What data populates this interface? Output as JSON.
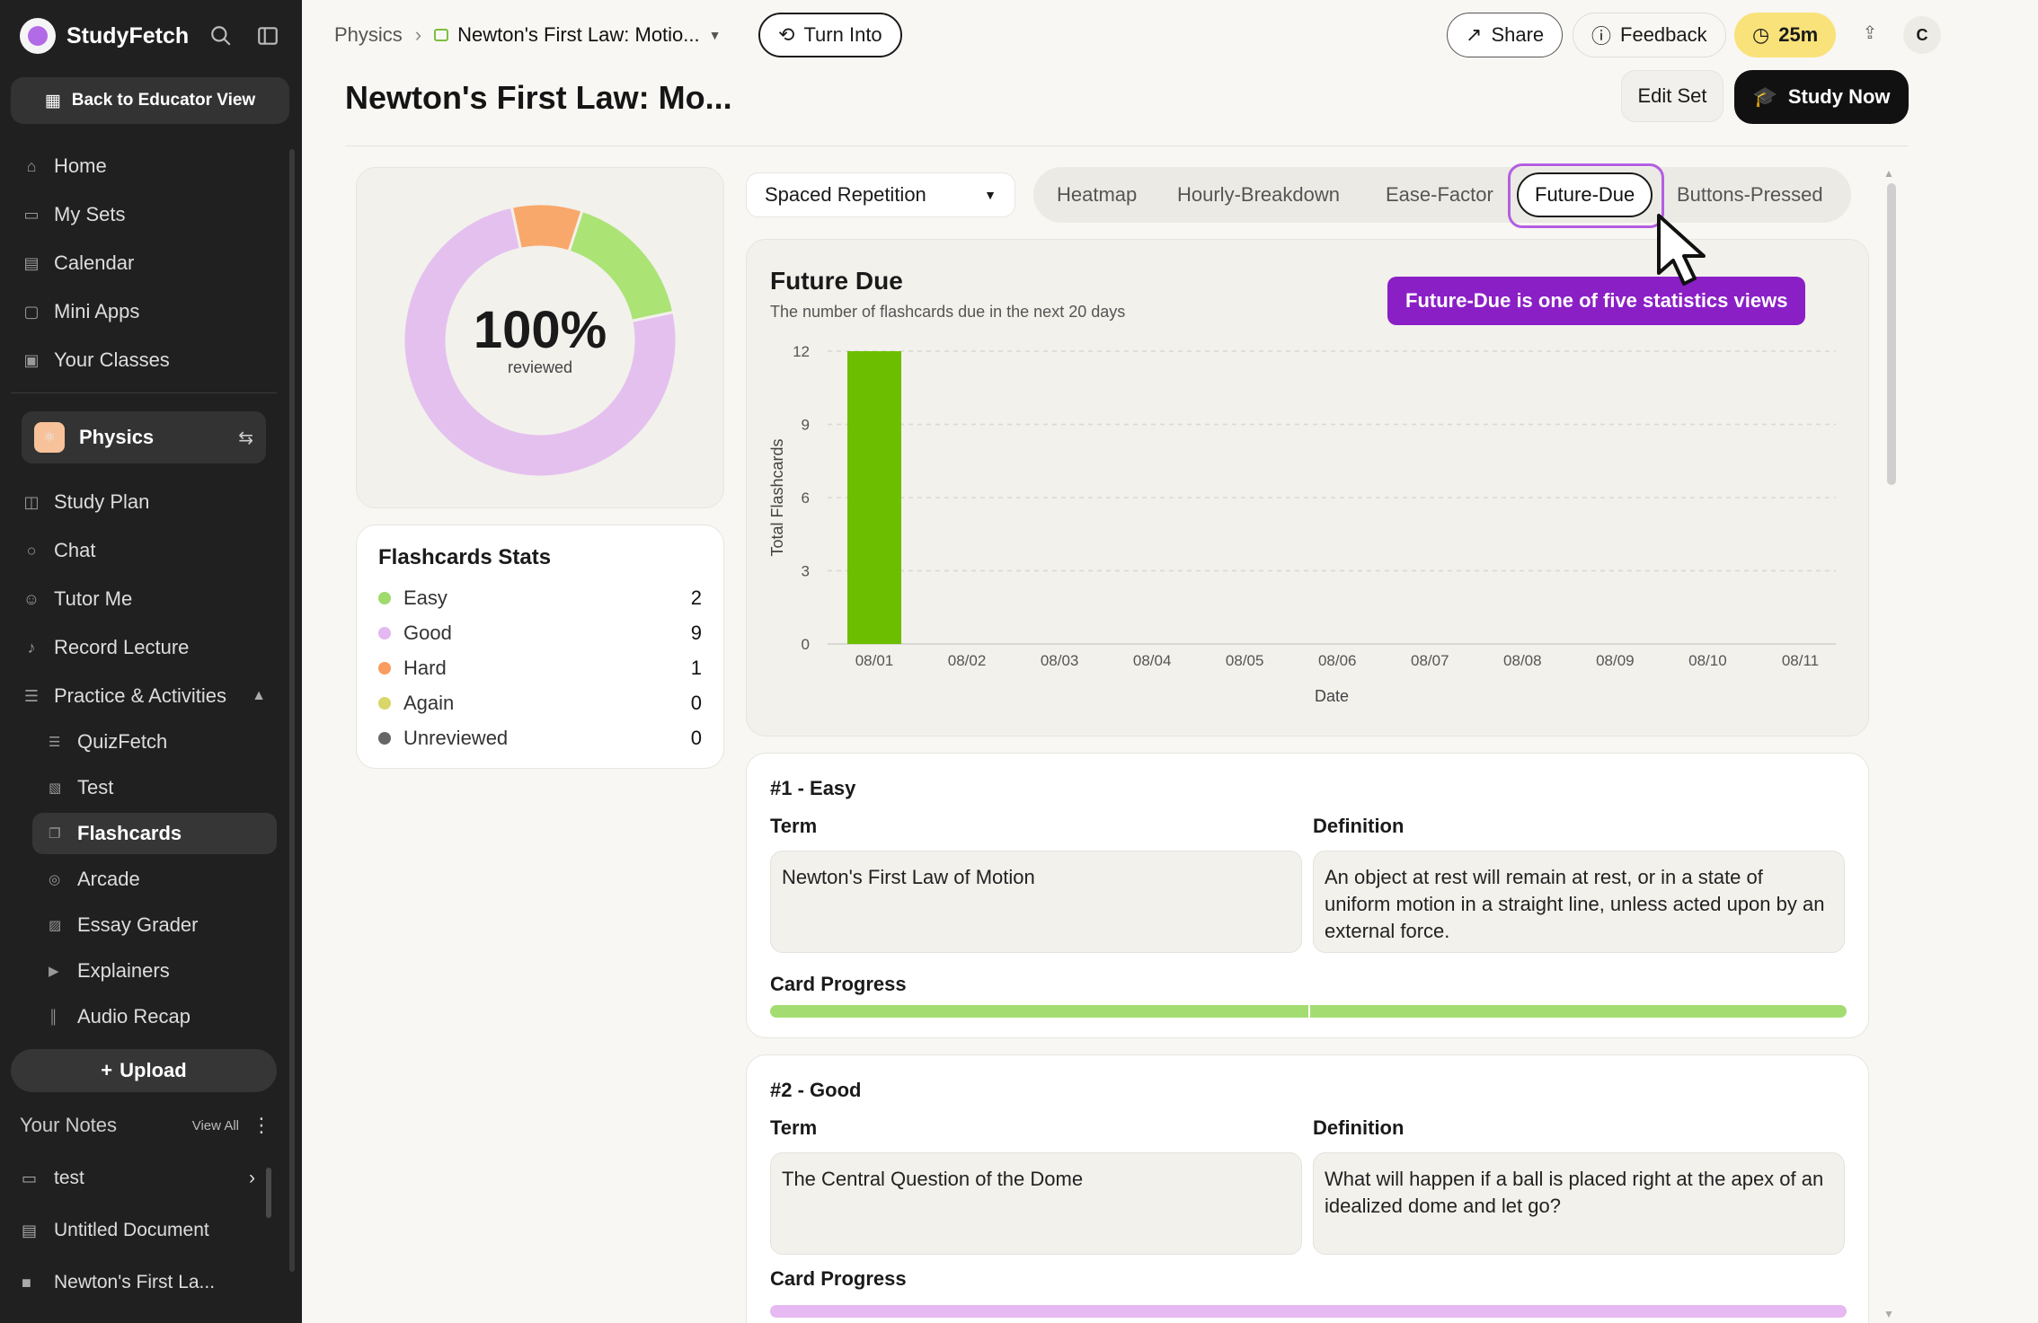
{
  "brand": {
    "name": "StudyFetch"
  },
  "sidebar": {
    "back_label": "Back to Educator View",
    "nav": [
      {
        "label": "Home",
        "icon": "home-icon"
      },
      {
        "label": "My Sets",
        "icon": "folder-icon"
      },
      {
        "label": "Calendar",
        "icon": "calendar-icon"
      },
      {
        "label": "Mini Apps",
        "icon": "window-icon"
      },
      {
        "label": "Your Classes",
        "icon": "classes-icon"
      }
    ],
    "class": {
      "name": "Physics",
      "badge": "⚛"
    },
    "class_nav": [
      {
        "label": "Study Plan"
      },
      {
        "label": "Chat"
      },
      {
        "label": "Tutor Me"
      },
      {
        "label": "Record Lecture"
      },
      {
        "label": "Practice & Activities"
      }
    ],
    "activities": [
      {
        "label": "QuizFetch"
      },
      {
        "label": "Test"
      },
      {
        "label": "Flashcards"
      },
      {
        "label": "Arcade"
      },
      {
        "label": "Essay Grader"
      },
      {
        "label": "Explainers"
      },
      {
        "label": "Audio Recap"
      }
    ],
    "upload_label": "Upload",
    "notes": {
      "title": "Your Notes",
      "view_all": "View All",
      "items": [
        {
          "label": "test"
        },
        {
          "label": "Untitled Document"
        },
        {
          "label": "Newton's First La..."
        }
      ]
    }
  },
  "topbar": {
    "breadcrumb_root": "Physics",
    "breadcrumb_doc": "Newton's First Law: Motio...",
    "turn_into": "Turn Into",
    "share": "Share",
    "feedback": "Feedback",
    "timer": "25m",
    "avatar": "C"
  },
  "page": {
    "title": "Newton's First Law: Mo...",
    "edit_set": "Edit Set",
    "study_now": "Study Now"
  },
  "donut": {
    "percent": "100%",
    "caption": "reviewed",
    "slices": [
      {
        "name": "Good",
        "value": 9,
        "color": "#e4c0ef"
      },
      {
        "name": "Hard",
        "value": 1,
        "color": "#f9a86b"
      },
      {
        "name": "Easy",
        "value": 2,
        "color": "#abe375"
      }
    ]
  },
  "stats": {
    "title": "Flashcards Stats",
    "rows": [
      {
        "label": "Easy",
        "value": "2",
        "color": "#9edb6a"
      },
      {
        "label": "Good",
        "value": "9",
        "color": "#e4b8f0"
      },
      {
        "label": "Hard",
        "value": "1",
        "color": "#f99c5f"
      },
      {
        "label": "Again",
        "value": "0",
        "color": "#d9d66a"
      },
      {
        "label": "Unreviewed",
        "value": "0",
        "color": "#666666"
      }
    ]
  },
  "mode_select": {
    "value": "Spaced Repetition"
  },
  "tabs": [
    {
      "label": "Heatmap"
    },
    {
      "label": "Hourly-Breakdown"
    },
    {
      "label": "Ease-Factor"
    },
    {
      "label": "Future-Due"
    },
    {
      "label": "Buttons-Pressed"
    }
  ],
  "tooltip": "Future-Due is one of five statistics views",
  "chart_data": {
    "type": "bar",
    "title": "Future Due",
    "subtitle": "The number of flashcards due in the next 20 days",
    "xlabel": "Date",
    "ylabel": "Total Flashcards",
    "categories": [
      "08/01",
      "08/02",
      "08/03",
      "08/04",
      "08/05",
      "08/06",
      "08/07",
      "08/08",
      "08/09",
      "08/10",
      "08/11"
    ],
    "values": [
      12,
      0,
      0,
      0,
      0,
      0,
      0,
      0,
      0,
      0,
      0
    ],
    "yticks": [
      0,
      3,
      6,
      9,
      12
    ],
    "ylim": [
      0,
      12
    ],
    "grid": true,
    "bar_color": "#6bbf00"
  },
  "cards": [
    {
      "heading": "#1 - Easy",
      "term_label": "Term",
      "definition_label": "Definition",
      "term": "Newton's First Law of Motion",
      "definition": "An object at rest will remain at rest, or in a state of uniform motion in a straight line, unless acted upon by an external force.",
      "progress_label": "Card Progress",
      "progress_color": "#a3dd72"
    },
    {
      "heading": "#2 - Good",
      "term_label": "Term",
      "definition_label": "Definition",
      "term": "The Central Question of the Dome",
      "definition": "What will happen if a ball is placed right at the apex of an idealized dome and let go?",
      "progress_label": "Card Progress",
      "progress_color": "#e6b9f2"
    }
  ]
}
